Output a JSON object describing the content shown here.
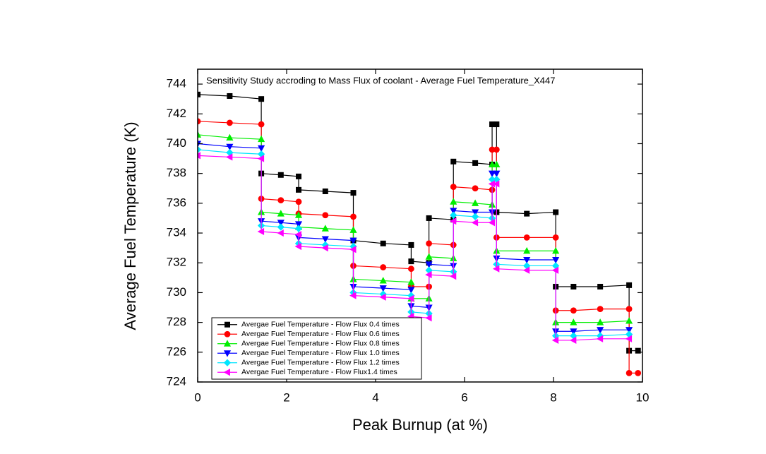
{
  "chart_data": {
    "type": "line",
    "title": "Sensitivity Study accroding to Mass Flux of coolant - Average Fuel Temperature_X447",
    "x_label": "Peak Burnup (at %)",
    "y_label": "Average Fuel Temperature (K)",
    "xlim": [
      0,
      10
    ],
    "ylim": [
      724,
      745
    ],
    "xticks": [
      0,
      2,
      4,
      6,
      8,
      10
    ],
    "yticks": [
      724,
      726,
      728,
      730,
      732,
      734,
      736,
      738,
      740,
      742,
      744
    ],
    "legend": "lower left",
    "x": [
      0,
      0.72,
      1.43,
      1.43,
      1.87,
      2.27,
      2.27,
      2.87,
      3.5,
      3.5,
      4.17,
      4.8,
      4.8,
      5.2,
      5.2,
      5.75,
      5.75,
      6.24,
      6.62,
      6.62,
      6.72,
      6.72,
      7.4,
      8.05,
      8.05,
      8.45,
      9.05,
      9.7,
      9.7,
      9.9
    ],
    "series": [
      {
        "name": "Avergae Fuel Temperature - Flow Flux 0.4 times",
        "color": "#000000",
        "marker": "square",
        "values": [
          743.3,
          743.2,
          743.0,
          738.0,
          737.9,
          737.8,
          736.9,
          736.8,
          736.7,
          733.5,
          733.3,
          733.2,
          732.1,
          732.0,
          735.0,
          734.9,
          738.8,
          738.7,
          738.6,
          741.3,
          741.3,
          735.4,
          735.3,
          735.4,
          730.4,
          730.4,
          730.4,
          730.5,
          726.1,
          726.1
        ]
      },
      {
        "name": "Avergae Fuel Temperature - Flow Flux 0.6 times",
        "color": "#ff0000",
        "marker": "circle",
        "values": [
          741.5,
          741.4,
          741.3,
          736.3,
          736.2,
          736.1,
          735.3,
          735.2,
          735.1,
          731.8,
          731.7,
          731.6,
          730.4,
          730.4,
          733.3,
          733.2,
          737.1,
          737.0,
          736.9,
          739.6,
          739.6,
          733.7,
          733.7,
          733.7,
          728.8,
          728.8,
          728.9,
          728.9,
          724.6,
          724.6
        ]
      },
      {
        "name": "Avergae Fuel Temperature - Flow Flux 0.8 times",
        "color": "#00ee00",
        "marker": "triangle-up",
        "values": [
          740.6,
          740.4,
          740.3,
          735.4,
          735.3,
          735.2,
          734.4,
          734.3,
          734.2,
          730.9,
          730.8,
          730.7,
          729.6,
          729.6,
          732.4,
          732.3,
          736.1,
          736.0,
          735.9,
          738.6,
          738.6,
          732.8,
          732.8,
          732.8,
          728.0,
          728.0,
          728.0,
          728.1,
          null,
          null
        ]
      },
      {
        "name": "Avergae Fuel Temperature - Flow Flux 1.0 times",
        "color": "#0000ff",
        "marker": "triangle-down",
        "values": [
          740.0,
          739.8,
          739.7,
          734.8,
          734.7,
          734.6,
          733.7,
          733.6,
          733.5,
          730.4,
          730.3,
          730.2,
          729.1,
          729.0,
          731.9,
          731.8,
          735.5,
          735.4,
          735.4,
          738.0,
          738.0,
          732.3,
          732.2,
          732.2,
          727.4,
          727.4,
          727.5,
          727.5,
          null,
          null
        ]
      },
      {
        "name": "Avergae Fuel Temperature - Flow Flux 1.2 times",
        "color": "#00e5ff",
        "marker": "diamond",
        "values": [
          739.6,
          739.4,
          739.3,
          734.5,
          734.4,
          734.3,
          733.3,
          733.2,
          733.1,
          730.0,
          729.9,
          729.8,
          728.7,
          728.6,
          731.5,
          731.4,
          735.2,
          735.1,
          735.0,
          737.6,
          737.6,
          731.9,
          731.8,
          731.8,
          727.1,
          727.1,
          727.1,
          727.2,
          null,
          null
        ]
      },
      {
        "name": "Avergae Fuel Temperature - Flow Flux1.4 times",
        "color": "#ff00ff",
        "marker": "triangle-left",
        "values": [
          739.2,
          739.1,
          739.0,
          734.1,
          734.0,
          733.9,
          733.1,
          733.0,
          732.9,
          729.8,
          729.7,
          729.6,
          728.4,
          728.3,
          731.2,
          731.1,
          734.8,
          734.7,
          734.7,
          737.3,
          737.3,
          731.6,
          731.5,
          731.5,
          726.8,
          726.8,
          726.9,
          726.9,
          null,
          null
        ]
      }
    ]
  }
}
